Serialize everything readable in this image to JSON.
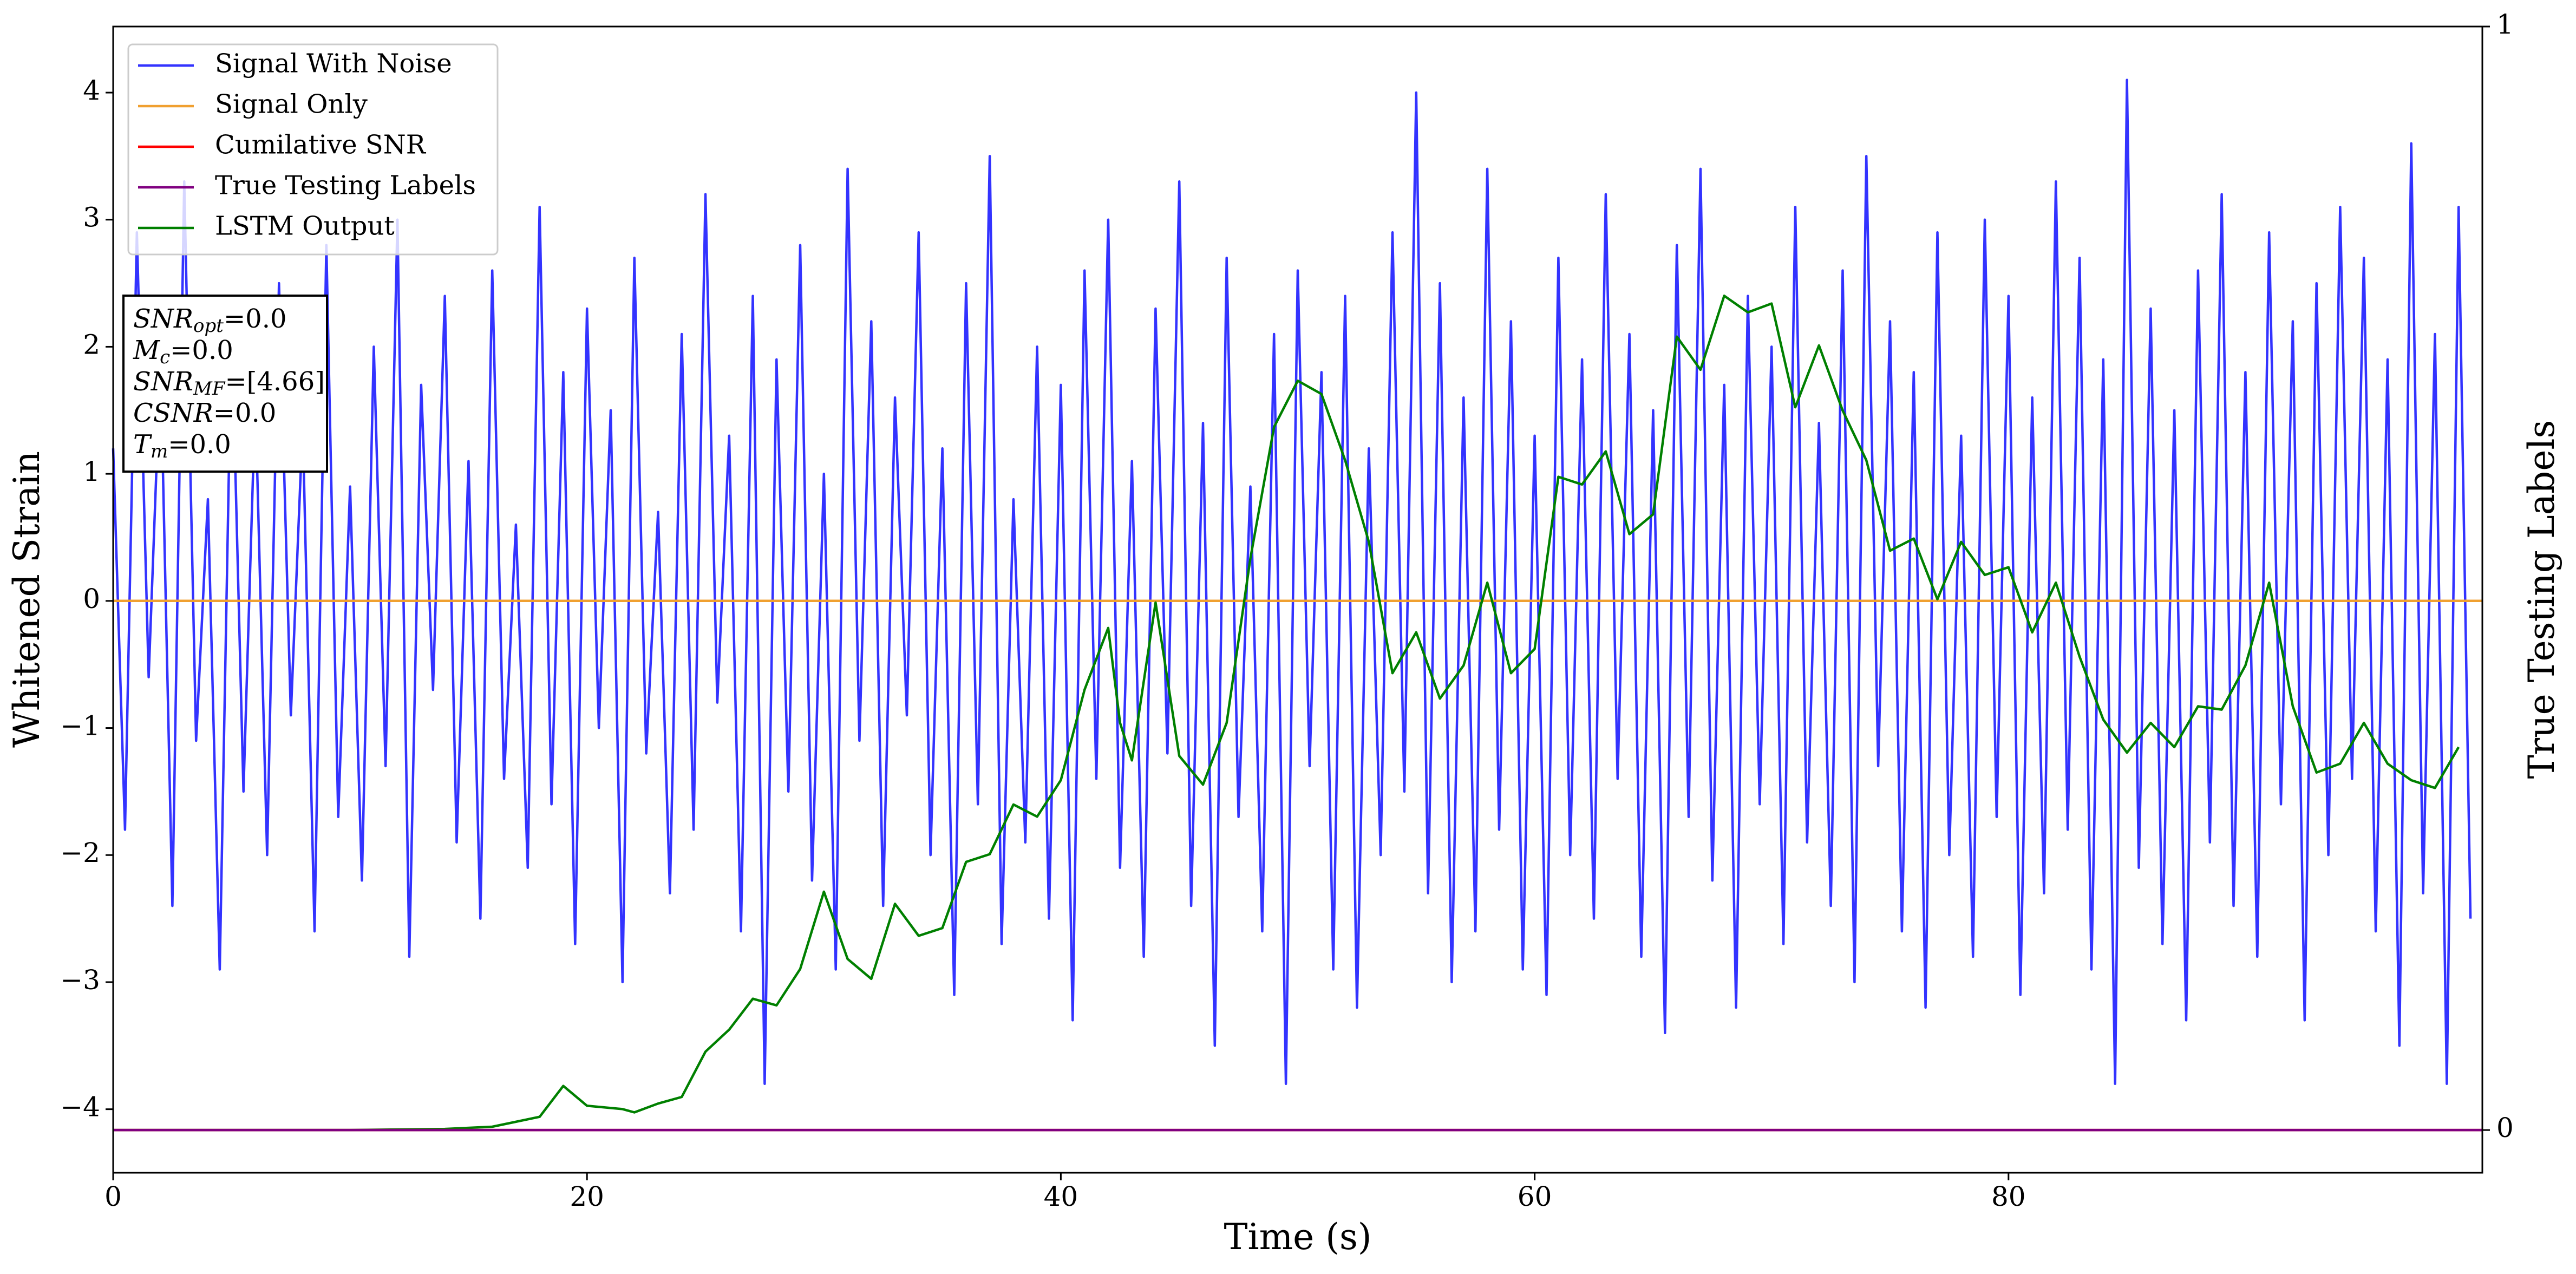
{
  "chart_data": {
    "type": "line",
    "xlabel": "Time (s)",
    "ylabel": "Whitened Strain",
    "y2label": "True Testing Labels",
    "xlim": [
      0,
      100
    ],
    "ylim": [
      -4.5,
      4.52
    ],
    "y2lim": [
      -0.0387,
      1
    ],
    "xticks": [
      0,
      20,
      40,
      60,
      80
    ],
    "yticks": [
      {
        "value": -4,
        "label": "−4"
      },
      {
        "value": -3,
        "label": "−3"
      },
      {
        "value": -2,
        "label": "−2"
      },
      {
        "value": -1,
        "label": "−1"
      },
      0,
      1,
      2,
      3,
      4
    ],
    "y2ticks": [
      0,
      1
    ],
    "legend": "upper left",
    "annotation_lines": [
      {
        "symbol": "SNR",
        "subscript": "opt",
        "text": "=0.0"
      },
      {
        "symbol": "M",
        "subscript": "c",
        "text": "=0.0"
      },
      {
        "symbol": "SNR",
        "subscript": "MF",
        "text": "=[4.66]"
      },
      {
        "symbol": "CSNR",
        "text": "=0.0"
      },
      {
        "symbol": "T",
        "subscript": "m",
        "text": "=0.0"
      }
    ],
    "series": [
      {
        "name": "Signal With Noise",
        "color": "#3333ff",
        "axis": "y",
        "x": [
          0,
          0.5,
          1,
          1.5,
          2,
          2.5,
          3,
          3.5,
          4,
          4.5,
          5,
          5.5,
          6,
          6.5,
          7,
          7.5,
          8,
          8.5,
          9,
          9.5,
          10,
          10.5,
          11,
          11.5,
          12,
          12.5,
          13,
          13.5,
          14,
          14.5,
          15,
          15.5,
          16,
          16.5,
          17,
          17.5,
          18,
          18.5,
          19,
          19.5,
          20,
          20.5,
          21,
          21.5,
          22,
          22.5,
          23,
          23.5,
          24,
          24.5,
          25,
          25.5,
          26,
          26.5,
          27,
          27.5,
          28,
          28.5,
          29,
          29.5,
          30,
          30.5,
          31,
          31.5,
          32,
          32.5,
          33,
          33.5,
          34,
          34.5,
          35,
          35.5,
          36,
          36.5,
          37,
          37.5,
          38,
          38.5,
          39,
          39.5,
          40,
          40.5,
          41,
          41.5,
          42,
          42.5,
          43,
          43.5,
          44,
          44.5,
          45,
          45.5,
          46,
          46.5,
          47,
          47.5,
          48,
          48.5,
          49,
          49.5,
          50,
          50.5,
          51,
          51.5,
          52,
          52.5,
          53,
          53.5,
          54,
          54.5,
          55,
          55.5,
          56,
          56.5,
          57,
          57.5,
          58,
          58.5,
          59,
          59.5,
          60,
          60.5,
          61,
          61.5,
          62,
          62.5,
          63,
          63.5,
          64,
          64.5,
          65,
          65.5,
          66,
          66.5,
          67,
          67.5,
          68,
          68.5,
          69,
          69.5,
          70,
          70.5,
          71,
          71.5,
          72,
          72.5,
          73,
          73.5,
          74,
          74.5,
          75,
          75.5,
          76,
          76.5,
          77,
          77.5,
          78,
          78.5,
          79,
          79.5,
          80,
          80.5,
          81,
          81.5,
          82,
          82.5,
          83,
          83.5,
          84,
          84.5,
          85,
          85.5,
          86,
          86.5,
          87,
          87.5,
          88,
          88.5,
          89,
          89.5,
          90,
          90.5,
          91,
          91.5,
          92,
          92.5,
          93,
          93.5,
          94,
          94.5,
          95,
          95.5,
          96,
          96.5,
          97,
          97.5,
          98,
          98.5,
          99,
          99.5
        ],
        "values": [
          1.2,
          -1.8,
          2.9,
          -0.6,
          1.9,
          -2.4,
          3.3,
          -1.1,
          0.8,
          -2.9,
          2.2,
          -1.5,
          1.6,
          -2.0,
          2.5,
          -0.9,
          1.4,
          -2.6,
          2.8,
          -1.7,
          0.9,
          -2.2,
          2.0,
          -1.3,
          3.0,
          -2.8,
          1.7,
          -0.7,
          2.4,
          -1.9,
          1.1,
          -2.5,
          2.6,
          -1.4,
          0.6,
          -2.1,
          3.1,
          -1.6,
          1.8,
          -2.7,
          2.3,
          -1.0,
          1.5,
          -3.0,
          2.7,
          -1.2,
          0.7,
          -2.3,
          2.1,
          -1.8,
          3.2,
          -0.8,
          1.3,
          -2.6,
          2.4,
          -3.8,
          1.9,
          -1.5,
          2.8,
          -2.2,
          1.0,
          -2.9,
          3.4,
          -1.1,
          2.2,
          -2.4,
          1.6,
          -0.9,
          2.9,
          -2.0,
          1.2,
          -3.1,
          2.5,
          -1.6,
          3.5,
          -2.7,
          0.8,
          -1.9,
          2.0,
          -2.5,
          1.7,
          -3.3,
          2.6,
          -1.4,
          3.0,
          -2.1,
          1.1,
          -2.8,
          2.3,
          -1.2,
          3.3,
          -2.4,
          1.4,
          -3.5,
          2.7,
          -1.7,
          0.9,
          -2.6,
          2.1,
          -3.8,
          2.6,
          -1.3,
          1.8,
          -2.9,
          2.4,
          -3.2,
          1.2,
          -2.0,
          2.9,
          -1.5,
          4.0,
          -2.3,
          2.5,
          -3.0,
          1.6,
          -2.6,
          3.4,
          -1.8,
          2.2,
          -2.9,
          1.3,
          -3.1,
          2.7,
          -2.0,
          1.9,
          -2.5,
          3.2,
          -1.4,
          2.1,
          -2.8,
          1.5,
          -3.4,
          2.8,
          -1.7,
          3.4,
          -2.2,
          1.7,
          -3.2,
          2.4,
          -1.6,
          2.0,
          -2.7,
          3.1,
          -1.9,
          1.4,
          -2.4,
          2.6,
          -3.0,
          3.5,
          -1.3,
          2.2,
          -2.6,
          1.8,
          -3.2,
          2.9,
          -2.0,
          1.3,
          -2.8,
          3.0,
          -1.7,
          2.4,
          -3.1,
          1.6,
          -2.3,
          3.3,
          -1.8,
          2.7,
          -2.9,
          1.9,
          -3.8,
          4.1,
          -2.1,
          2.3,
          -2.7,
          1.5,
          -3.3,
          2.6,
          -1.9,
          3.2,
          -2.4,
          1.8,
          -2.8,
          2.9,
          -1.6,
          2.2,
          -3.3,
          2.5,
          -2.0,
          3.1,
          -1.4,
          2.7,
          -2.6,
          1.9,
          -3.5,
          3.6,
          -2.3,
          2.1,
          -3.8,
          3.1,
          -2.5
        ]
      },
      {
        "name": "Signal Only",
        "color": "#f0a030",
        "axis": "y",
        "x": [
          0,
          100
        ],
        "values": [
          0,
          0
        ]
      },
      {
        "name": "Cumilative SNR",
        "color": "#ff0000",
        "axis": "y2",
        "x": [
          0,
          100
        ],
        "values": [
          0,
          0
        ]
      },
      {
        "name": "True Testing Labels",
        "color": "#800080",
        "axis": "y2",
        "x": [
          0,
          100
        ],
        "values": [
          0,
          0
        ]
      },
      {
        "name": "LSTM Output",
        "color": "#008000",
        "axis": "y2",
        "x": [
          0,
          10,
          14,
          16,
          18,
          19,
          20,
          21.5,
          22,
          23,
          24,
          25,
          26,
          27,
          28,
          29,
          30,
          31,
          32,
          33,
          34,
          35,
          36,
          37,
          38,
          39,
          40,
          41,
          42,
          42.5,
          43,
          44,
          45,
          46,
          47,
          48,
          49,
          50,
          51,
          52,
          53,
          54,
          55,
          56,
          57,
          58,
          59,
          60,
          61,
          62,
          63,
          64,
          65,
          66,
          67,
          68,
          69,
          70,
          71,
          72,
          73,
          74,
          75,
          76,
          77,
          78,
          79,
          80,
          81,
          82,
          83,
          84,
          85,
          86,
          87,
          88,
          89,
          90,
          91,
          92,
          93,
          94,
          95,
          96,
          97,
          98,
          99
        ],
        "values": [
          0,
          0,
          0.001,
          0.003,
          0.012,
          0.04,
          0.022,
          0.019,
          0.016,
          0.024,
          0.03,
          0.071,
          0.091,
          0.119,
          0.113,
          0.146,
          0.216,
          0.155,
          0.137,
          0.205,
          0.176,
          0.183,
          0.243,
          0.25,
          0.295,
          0.284,
          0.317,
          0.399,
          0.455,
          0.369,
          0.335,
          0.478,
          0.339,
          0.313,
          0.369,
          0.518,
          0.637,
          0.679,
          0.667,
          0.607,
          0.533,
          0.414,
          0.451,
          0.391,
          0.421,
          0.496,
          0.414,
          0.436,
          0.592,
          0.585,
          0.615,
          0.54,
          0.558,
          0.719,
          0.689,
          0.756,
          0.741,
          0.749,
          0.655,
          0.711,
          0.652,
          0.607,
          0.525,
          0.536,
          0.481,
          0.533,
          0.503,
          0.51,
          0.451,
          0.496,
          0.429,
          0.372,
          0.342,
          0.369,
          0.347,
          0.384,
          0.381,
          0.421,
          0.496,
          0.384,
          0.324,
          0.332,
          0.369,
          0.332,
          0.317,
          0.31,
          0.347
        ]
      }
    ]
  }
}
